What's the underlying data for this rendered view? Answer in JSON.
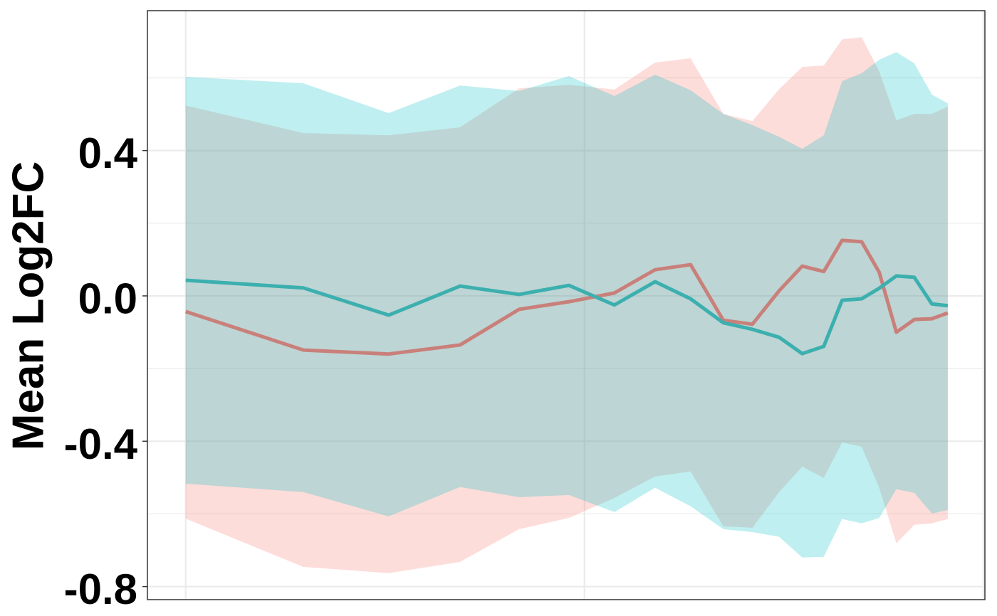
{
  "chart_data": {
    "type": "line-ribbon",
    "y_label": "Mean Log2FC",
    "x": [
      0,
      0.295,
      0.509,
      0.688,
      0.836,
      0.961,
      1.075,
      1.177,
      1.266,
      1.348,
      1.421,
      1.488,
      1.546,
      1.6,
      1.646,
      1.695,
      1.739,
      1.782,
      1.827,
      1.871,
      1.911
    ],
    "xlim": [
      -0.096,
      2.004
    ],
    "xticks": [
      0,
      1,
      2
    ],
    "ylim": [
      -0.836,
      0.785
    ],
    "yticks": [
      -0.8,
      -0.4,
      {
        "value": 0,
        "label": "0.0"
      },
      0.4
    ],
    "yminor": [
      -0.6,
      -0.2,
      0.2,
      0.6
    ],
    "grid": true,
    "series": [
      {
        "color": "#f8766d",
        "line_color": "#c9807a",
        "values": [
          -0.043,
          -0.149,
          -0.16,
          -0.135,
          -0.037,
          -0.016,
          0.008,
          0.072,
          0.086,
          -0.067,
          -0.078,
          0.014,
          0.082,
          0.067,
          0.153,
          0.149,
          0.065,
          -0.1,
          -0.065,
          -0.063,
          -0.047
        ],
        "upper": [
          0.524,
          0.448,
          0.442,
          0.464,
          0.571,
          0.581,
          0.568,
          0.642,
          0.654,
          0.501,
          0.481,
          0.569,
          0.63,
          0.634,
          0.706,
          0.712,
          0.618,
          0.483,
          0.501,
          0.501,
          0.521
        ],
        "lower": [
          -0.613,
          -0.746,
          -0.763,
          -0.732,
          -0.642,
          -0.611,
          -0.556,
          -0.497,
          -0.483,
          -0.634,
          -0.638,
          -0.54,
          -0.47,
          -0.501,
          -0.403,
          -0.415,
          -0.528,
          -0.681,
          -0.63,
          -0.626,
          -0.614
        ]
      },
      {
        "color": "#00bfc4",
        "line_color": "#3cafaf",
        "values": [
          0.043,
          0.022,
          -0.053,
          0.027,
          0.004,
          0.029,
          -0.025,
          0.039,
          -0.008,
          -0.074,
          -0.092,
          -0.114,
          -0.159,
          -0.139,
          -0.012,
          -0.008,
          0.021,
          0.055,
          0.051,
          -0.022,
          -0.027
        ],
        "upper": [
          0.603,
          0.585,
          0.503,
          0.579,
          0.564,
          0.605,
          0.55,
          0.609,
          0.566,
          0.501,
          0.47,
          0.438,
          0.405,
          0.442,
          0.591,
          0.613,
          0.65,
          0.671,
          0.64,
          0.554,
          0.53
        ],
        "lower": [
          -0.517,
          -0.54,
          -0.607,
          -0.526,
          -0.554,
          -0.548,
          -0.595,
          -0.528,
          -0.579,
          -0.642,
          -0.65,
          -0.663,
          -0.72,
          -0.718,
          -0.614,
          -0.626,
          -0.611,
          -0.532,
          -0.542,
          -0.599,
          -0.589
        ]
      }
    ]
  }
}
